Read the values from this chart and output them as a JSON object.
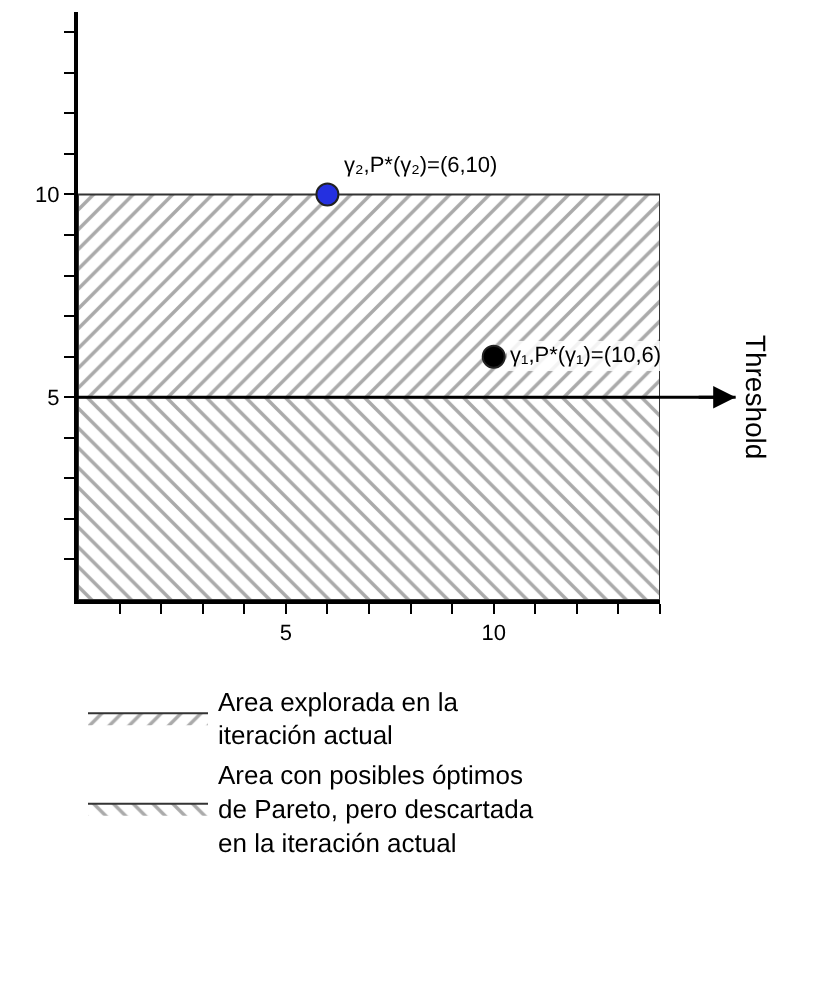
{
  "chart_data": {
    "type": "scatter",
    "x": [
      6,
      10
    ],
    "values": [
      10,
      6
    ],
    "colors": [
      "#2430e0",
      "#000000"
    ],
    "marker": "circle",
    "xlim": [
      0,
      14
    ],
    "xticks": [
      {
        "value": 1,
        "label": null
      },
      {
        "value": 2,
        "label": null
      },
      {
        "value": 3,
        "label": null
      },
      {
        "value": 4,
        "label": null
      },
      5,
      {
        "value": 6,
        "label": null
      },
      {
        "value": 7,
        "label": null
      },
      {
        "value": 8,
        "label": null
      },
      {
        "value": 9,
        "label": null
      },
      10,
      {
        "value": 11,
        "label": null
      },
      {
        "value": 12,
        "label": null
      },
      {
        "value": 13,
        "label": null
      },
      {
        "value": 14,
        "label": null
      }
    ],
    "ylim": [
      0,
      14.5
    ],
    "yticks": [
      {
        "value": 1,
        "label": null
      },
      {
        "value": 2,
        "label": null
      },
      {
        "value": 3,
        "label": null
      },
      {
        "value": 4,
        "label": null
      },
      5,
      {
        "value": 6,
        "label": null
      },
      {
        "value": 7,
        "label": null
      },
      {
        "value": 8,
        "label": null
      },
      {
        "value": 9,
        "label": null
      },
      10,
      {
        "value": 11,
        "label": null
      },
      {
        "value": 12,
        "label": null
      },
      {
        "value": 13,
        "label": null
      },
      {
        "value": 14,
        "label": null
      }
    ],
    "bands": [
      {
        "axis": "y",
        "from": 5,
        "to": 10,
        "label": "Area explorada en la iteración actual",
        "color": "#555555"
      },
      {
        "axis": "y",
        "from": 0,
        "to": 5,
        "label": "Area con posibles óptimos de Pareto, pero descartada en la iteración actual",
        "color": "#555555"
      }
    ],
    "ref_lines": [
      {
        "axis": "y",
        "value": 5,
        "label": "Threshold",
        "color": "#000000"
      }
    ],
    "annotations": [
      {
        "text": "γ₂,P*(γ₂)=(6,10)",
        "x": 6,
        "y": 10
      },
      {
        "text": "γ₁,P*(γ₁)=(10,6)",
        "x": 10,
        "y": 6
      }
    ],
    "legend": "bottom"
  }
}
